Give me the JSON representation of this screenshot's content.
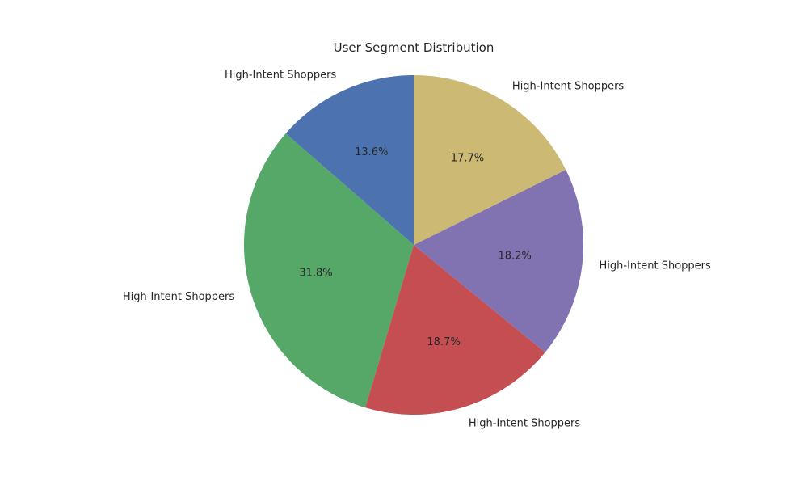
{
  "chart_data": {
    "type": "pie",
    "title": "User Segment Distribution",
    "start_angle_deg": 90,
    "direction": "counterclockwise",
    "slices": [
      {
        "label": "High-Intent Shoppers",
        "value": 13.6,
        "pct_label": "13.6%",
        "color": "#4c72b0"
      },
      {
        "label": "High-Intent Shoppers",
        "value": 31.8,
        "pct_label": "31.8%",
        "color": "#55a868"
      },
      {
        "label": "High-Intent Shoppers",
        "value": 18.7,
        "pct_label": "18.7%",
        "color": "#c44e52"
      },
      {
        "label": "High-Intent Shoppers",
        "value": 18.2,
        "pct_label": "18.2%",
        "color": "#8172b2"
      },
      {
        "label": "High-Intent Shoppers",
        "value": 17.7,
        "pct_label": "17.7%",
        "color": "#ccb974"
      }
    ]
  }
}
